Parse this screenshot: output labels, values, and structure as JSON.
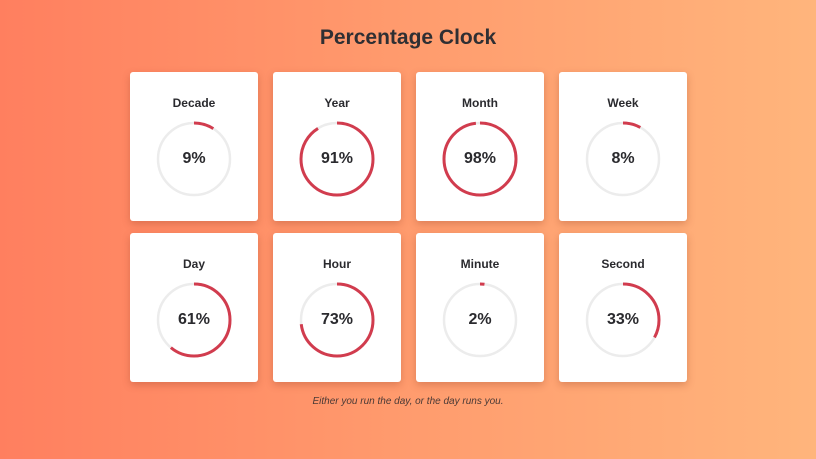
{
  "page": {
    "title": "Percentage Clock",
    "quote": "Either you run the day, or the day runs you."
  },
  "colors": {
    "background_start": "#ff7f5f",
    "background_end": "#ffb57c",
    "card": "#ffffff",
    "ring_track": "#ececec",
    "ring_progress": "#d13c4e"
  },
  "clocks": [
    {
      "label": "Decade",
      "value": "9%",
      "percent": 9
    },
    {
      "label": "Year",
      "value": "91%",
      "percent": 91
    },
    {
      "label": "Month",
      "value": "98%",
      "percent": 98
    },
    {
      "label": "Week",
      "value": "8%",
      "percent": 8
    },
    {
      "label": "Day",
      "value": "61%",
      "percent": 61
    },
    {
      "label": "Hour",
      "value": "73%",
      "percent": 73
    },
    {
      "label": "Minute",
      "value": "2%",
      "percent": 2
    },
    {
      "label": "Second",
      "value": "33%",
      "percent": 33
    }
  ]
}
